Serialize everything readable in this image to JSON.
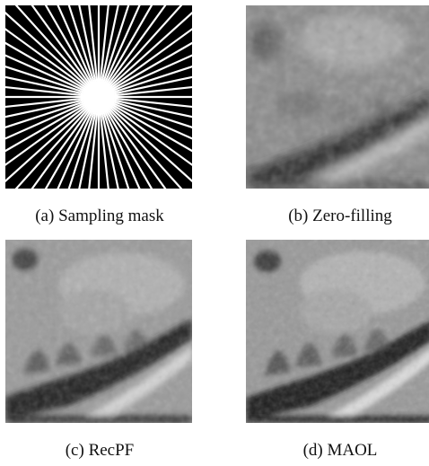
{
  "figure": {
    "panels": [
      {
        "id": "a",
        "caption": "(a) Sampling mask"
      },
      {
        "id": "b",
        "caption": "(b) Zero-filling"
      },
      {
        "id": "c",
        "caption": "(c) RecPF"
      },
      {
        "id": "d",
        "caption": "(d) MAOL"
      }
    ]
  },
  "colors": {
    "mask_background": "#000000",
    "mask_lines": "#ffffff",
    "tissue_base": "#9a9a9a",
    "dark_band": "#1e1e1e",
    "bright_vessel": "#dcdcdc"
  }
}
